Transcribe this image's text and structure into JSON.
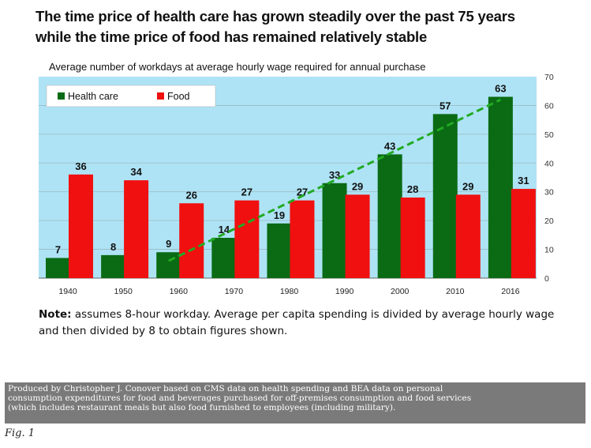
{
  "colors": {
    "plot_background": "#aee3f5",
    "health_care": "#0a6b14",
    "food": "#f01010",
    "trendline": "#22aa22"
  },
  "title_lines": [
    "The time price of health care has grown steadily over the past 75 years",
    "while the time price of food has remained relatively stable"
  ],
  "note": {
    "label": "Note:",
    "text": " assumes 8-hour workday. Average per capita spending is divided by average hourly wage and then divided by 8 to obtain figures shown."
  },
  "credit_lines": [
    "Produced by Christopher J. Conover based on CMS data on health spending and BEA data on personal",
    "consumption expenditures for food and beverages purchased for off-premises consumption and food services",
    "(which includes restaurant meals but also food furnished to employees (including military)."
  ],
  "figure_label": "Fig. 1",
  "chart_data": {
    "type": "bar",
    "title": "Average number of workdays at average hourly wage required for annual purchase",
    "xlabel": "",
    "ylabel": "",
    "categories": [
      "1940",
      "1950",
      "1960",
      "1970",
      "1980",
      "1990",
      "2000",
      "2010",
      "2016"
    ],
    "series": [
      {
        "name": "Health care",
        "values": [
          7,
          8,
          9,
          14,
          19,
          33,
          43,
          57,
          63
        ]
      },
      {
        "name": "Food",
        "values": [
          36,
          34,
          26,
          27,
          27,
          29,
          28,
          29,
          31
        ]
      }
    ],
    "ylim": [
      0,
      70
    ],
    "yticks": [
      0,
      10,
      20,
      30,
      40,
      50,
      60,
      70
    ],
    "y_axis_side": "right",
    "grid": true,
    "legend_position": "top-left",
    "trendline": {
      "series": "Health care",
      "style": "dashed",
      "from_category": "1960",
      "to_category": "2016",
      "from_value": 6,
      "to_value": 62
    }
  }
}
